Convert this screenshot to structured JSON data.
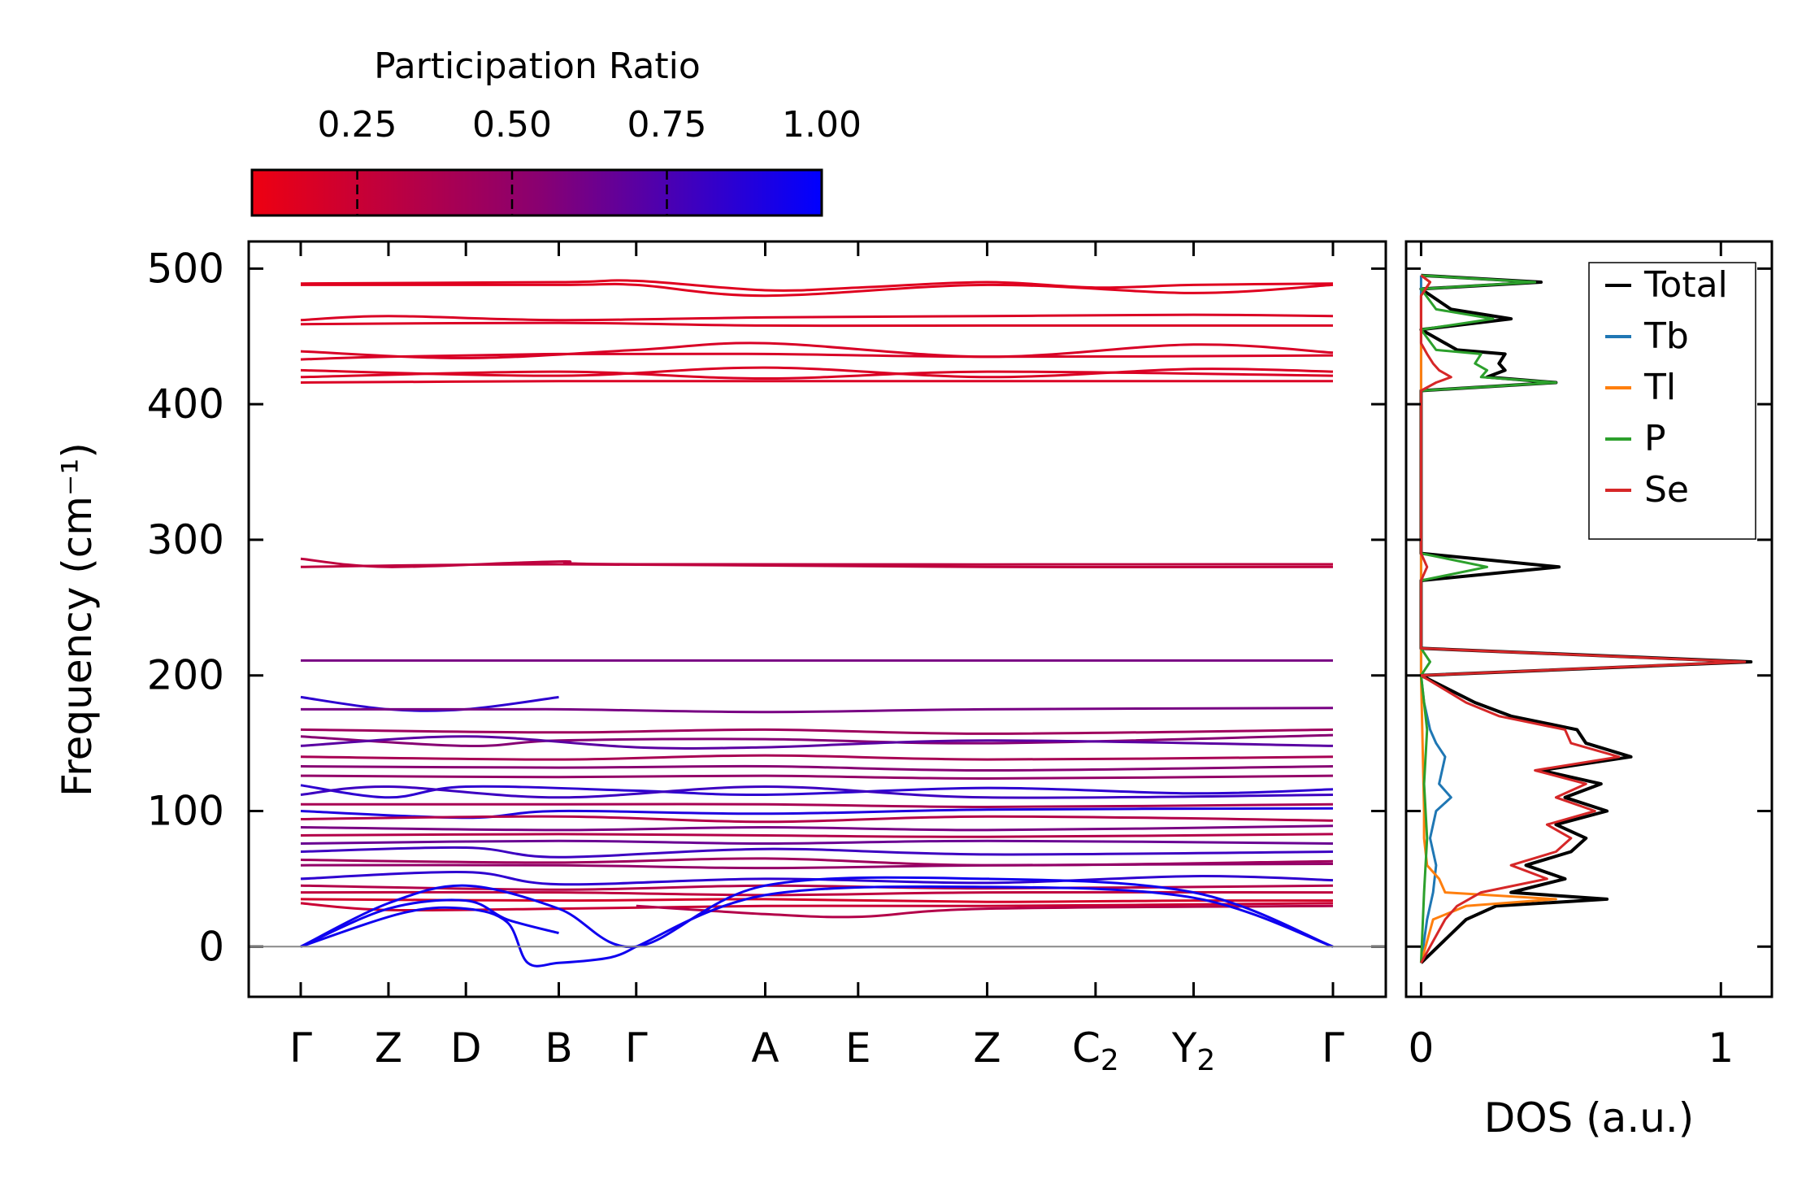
{
  "chart_data": [
    {
      "type": "line",
      "title": "",
      "xlabel": "",
      "ylabel": "Frequency (cm⁻¹)",
      "ylim": [
        -37,
        520
      ],
      "yticks": [
        0,
        100,
        200,
        300,
        400,
        500
      ],
      "grid": false,
      "path_labels": [
        "Γ",
        "Z",
        "D",
        "B",
        "Γ",
        "A",
        "E",
        "Z",
        "C₂",
        "Y₂",
        "Γ"
      ],
      "path_positions": [
        0.0,
        0.085,
        0.16,
        0.25,
        0.325,
        0.45,
        0.54,
        0.665,
        0.77,
        0.865,
        1.0
      ],
      "zero_line": 0,
      "series": [
        {
          "name": "band-490",
          "ratio": 0.15,
          "x": [
            0,
            0.25,
            0.325,
            0.45,
            0.54,
            0.665,
            0.77,
            0.865,
            1.0
          ],
          "values": [
            489,
            490,
            491,
            484,
            486,
            490,
            486,
            488,
            489
          ]
        },
        {
          "name": "band-485",
          "ratio": 0.15,
          "x": [
            0,
            0.25,
            0.325,
            0.45,
            0.665,
            0.865,
            1.0
          ],
          "values": [
            488,
            488,
            488,
            480,
            488,
            482,
            488
          ]
        },
        {
          "name": "band-465",
          "ratio": 0.17,
          "x": [
            0,
            0.085,
            0.25,
            0.45,
            0.665,
            0.865,
            1.0
          ],
          "values": [
            462,
            465,
            462,
            464,
            465,
            466,
            465
          ]
        },
        {
          "name": "band-460",
          "ratio": 0.17,
          "x": [
            0,
            0.25,
            0.45,
            0.665,
            1.0
          ],
          "values": [
            459,
            460,
            458,
            458,
            458
          ]
        },
        {
          "name": "band-440",
          "ratio": 0.18,
          "x": [
            0,
            0.16,
            0.325,
            0.45,
            0.665,
            0.865,
            1.0
          ],
          "values": [
            439,
            434,
            440,
            445,
            435,
            444,
            438
          ]
        },
        {
          "name": "band-435",
          "ratio": 0.18,
          "x": [
            0,
            0.085,
            0.25,
            0.45,
            0.665,
            1.0
          ],
          "values": [
            433,
            435,
            437,
            437,
            435,
            436
          ]
        },
        {
          "name": "band-425",
          "ratio": 0.17,
          "x": [
            0,
            0.25,
            0.45,
            0.665,
            0.865,
            1.0
          ],
          "values": [
            425,
            421,
            427,
            420,
            426,
            424
          ]
        },
        {
          "name": "band-420",
          "ratio": 0.17,
          "x": [
            0,
            0.25,
            0.45,
            0.665,
            1.0
          ],
          "values": [
            420,
            424,
            419,
            424,
            421
          ]
        },
        {
          "name": "band-416",
          "ratio": 0.17,
          "x": [
            0,
            0.25,
            0.45,
            0.665,
            1.0
          ],
          "values": [
            416,
            417,
            417,
            417,
            417
          ]
        },
        {
          "name": "band-286",
          "ratio": 0.3,
          "x": [
            0,
            0.085,
            0.25,
            0.325,
            1.0
          ],
          "values": [
            286,
            280,
            284,
            282,
            282
          ]
        },
        {
          "name": "band-280",
          "ratio": 0.3,
          "x": [
            0,
            0.25,
            0.665,
            1.0
          ],
          "values": [
            280,
            282,
            280,
            280
          ]
        },
        {
          "name": "band-211",
          "ratio": 0.6,
          "x": [
            0,
            0.25,
            0.665,
            1.0
          ],
          "values": [
            211,
            211,
            211,
            211
          ]
        },
        {
          "name": "band-183",
          "ratio": 0.85,
          "x": [
            0,
            0.085,
            0.16,
            0.25
          ],
          "values": [
            184,
            175,
            175,
            184
          ]
        },
        {
          "name": "band-175",
          "ratio": 0.6,
          "x": [
            0,
            0.085,
            0.25,
            0.45,
            0.665,
            1.0
          ],
          "values": [
            175,
            175,
            175,
            173,
            175,
            176
          ]
        },
        {
          "name": "band-160",
          "ratio": 0.45,
          "x": [
            0,
            0.25,
            0.45,
            0.665,
            1.0
          ],
          "values": [
            160,
            158,
            160,
            157,
            160
          ]
        },
        {
          "name": "band-155",
          "ratio": 0.55,
          "x": [
            0,
            0.16,
            0.25,
            0.45,
            0.665,
            1.0
          ],
          "values": [
            155,
            148,
            152,
            153,
            150,
            156
          ]
        },
        {
          "name": "band-148",
          "ratio": 0.7,
          "x": [
            0,
            0.16,
            0.325,
            0.45,
            0.665,
            1.0
          ],
          "values": [
            148,
            155,
            147,
            147,
            152,
            148
          ]
        },
        {
          "name": "band-140",
          "ratio": 0.4,
          "x": [
            0,
            0.25,
            0.45,
            0.665,
            1.0
          ],
          "values": [
            140,
            138,
            141,
            138,
            140
          ]
        },
        {
          "name": "band-133",
          "ratio": 0.55,
          "x": [
            0,
            0.25,
            0.45,
            0.665,
            1.0
          ],
          "values": [
            133,
            132,
            133,
            130,
            133
          ]
        },
        {
          "name": "band-126",
          "ratio": 0.5,
          "x": [
            0,
            0.25,
            0.45,
            0.665,
            1.0
          ],
          "values": [
            126,
            125,
            126,
            124,
            126
          ]
        },
        {
          "name": "band-118",
          "ratio": 0.85,
          "x": [
            0,
            0.085,
            0.16,
            0.325,
            0.45,
            0.665,
            0.865,
            1.0
          ],
          "values": [
            119,
            110,
            118,
            115,
            112,
            117,
            113,
            116
          ]
        },
        {
          "name": "band-112",
          "ratio": 0.8,
          "x": [
            0,
            0.085,
            0.25,
            0.45,
            0.665,
            1.0
          ],
          "values": [
            112,
            118,
            110,
            118,
            110,
            112
          ]
        },
        {
          "name": "band-105",
          "ratio": 0.4,
          "x": [
            0,
            0.25,
            0.45,
            0.665,
            1.0
          ],
          "values": [
            105,
            105,
            105,
            103,
            105
          ]
        },
        {
          "name": "band-99",
          "ratio": 0.9,
          "x": [
            0,
            0.16,
            0.25,
            0.45,
            0.665,
            1.0
          ],
          "values": [
            100,
            95,
            100,
            98,
            101,
            102
          ]
        },
        {
          "name": "band-94",
          "ratio": 0.35,
          "x": [
            0,
            0.25,
            0.45,
            0.665,
            1.0
          ],
          "values": [
            94,
            96,
            92,
            96,
            93
          ]
        },
        {
          "name": "band-88",
          "ratio": 0.6,
          "x": [
            0,
            0.25,
            0.45,
            0.665,
            1.0
          ],
          "values": [
            88,
            86,
            88,
            86,
            89
          ]
        },
        {
          "name": "band-82",
          "ratio": 0.35,
          "x": [
            0,
            0.25,
            0.45,
            0.665,
            1.0
          ],
          "values": [
            82,
            83,
            82,
            81,
            83
          ]
        },
        {
          "name": "band-76",
          "ratio": 0.65,
          "x": [
            0,
            0.25,
            0.45,
            0.665,
            1.0
          ],
          "values": [
            76,
            78,
            76,
            78,
            76
          ]
        },
        {
          "name": "band-70",
          "ratio": 0.8,
          "x": [
            0,
            0.16,
            0.25,
            0.45,
            0.665,
            1.0
          ],
          "values": [
            70,
            73,
            66,
            72,
            68,
            70
          ]
        },
        {
          "name": "band-65",
          "ratio": 0.45,
          "x": [
            0,
            0.25,
            0.45,
            0.665,
            1.0
          ],
          "values": [
            64,
            62,
            65,
            60,
            63
          ]
        },
        {
          "name": "band-60",
          "ratio": 0.5,
          "x": [
            0,
            0.25,
            0.45,
            0.665,
            1.0
          ],
          "values": [
            60,
            60,
            58,
            60,
            61
          ]
        },
        {
          "name": "band-52",
          "ratio": 0.85,
          "x": [
            0,
            0.16,
            0.25,
            0.45,
            0.665,
            0.865,
            1.0
          ],
          "values": [
            50,
            55,
            46,
            50,
            47,
            52,
            49
          ]
        },
        {
          "name": "band-45",
          "ratio": 0.35,
          "x": [
            0,
            0.25,
            0.45,
            0.665,
            1.0
          ],
          "values": [
            45,
            42,
            45,
            43,
            45
          ]
        },
        {
          "name": "band-40",
          "ratio": 0.3,
          "x": [
            0,
            0.25,
            0.45,
            0.665,
            1.0
          ],
          "values": [
            40,
            40,
            38,
            40,
            40
          ]
        },
        {
          "name": "band-34",
          "ratio": 0.2,
          "x": [
            0,
            0.25,
            0.45,
            0.665,
            0.865,
            1.0
          ],
          "values": [
            35,
            34,
            35,
            33,
            34,
            34
          ]
        },
        {
          "name": "band-30",
          "ratio": 0.25,
          "x": [
            0,
            0.085,
            0.25,
            0.45,
            0.665,
            1.0
          ],
          "values": [
            32,
            27,
            28,
            30,
            30,
            32
          ]
        },
        {
          "name": "band-22",
          "ratio": 0.35,
          "x": [
            0.325,
            0.45,
            0.54,
            0.665,
            1.0
          ],
          "values": [
            30,
            24,
            22,
            28,
            30
          ]
        },
        {
          "name": "band-acoustic-1",
          "ratio": 0.95,
          "x": [
            0,
            0.085,
            0.16,
            0.25,
            0.325,
            0.45,
            0.665,
            0.865,
            1.0
          ],
          "values": [
            0,
            32,
            45,
            28,
            0,
            45,
            50,
            40,
            0
          ]
        },
        {
          "name": "band-acoustic-2",
          "ratio": 0.95,
          "x": [
            0,
            0.085,
            0.16,
            0.2,
            0.25
          ],
          "values": [
            0,
            28,
            34,
            20,
            10
          ]
        },
        {
          "name": "band-acoustic-3",
          "ratio": 0.95,
          "x": [
            0,
            0.1,
            0.16,
            0.2,
            0.22,
            0.25,
            0.3,
            0.325
          ],
          "values": [
            0,
            25,
            28,
            18,
            -12,
            -12,
            -8,
            0
          ]
        },
        {
          "name": "band-acoustic-4",
          "ratio": 0.95,
          "x": [
            0.325,
            0.45,
            0.665,
            0.865,
            1.0
          ],
          "values": [
            0,
            38,
            44,
            36,
            0
          ]
        }
      ]
    },
    {
      "type": "line",
      "xlabel": "DOS (a.u.)",
      "xlim": [
        -0.05,
        1.17
      ],
      "ylim": [
        -37,
        520
      ],
      "xticks": [
        0,
        1
      ],
      "xtick_labels": [
        "0",
        "1"
      ],
      "legend_position": "top-right",
      "series": [
        {
          "name": "Total",
          "color": "#000000",
          "y": [
            -12,
            20,
            30,
            35,
            40,
            50,
            60,
            70,
            80,
            90,
            100,
            110,
            120,
            130,
            140,
            150,
            160,
            170,
            180,
            200,
            210,
            220,
            270,
            280,
            290,
            410,
            416,
            420,
            425,
            430,
            437,
            440,
            455,
            463,
            470,
            485,
            490,
            495
          ],
          "values": [
            0,
            0.15,
            0.25,
            0.62,
            0.3,
            0.48,
            0.35,
            0.5,
            0.55,
            0.45,
            0.62,
            0.48,
            0.6,
            0.4,
            0.7,
            0.55,
            0.52,
            0.3,
            0.18,
            0.0,
            1.1,
            0.0,
            0.0,
            0.46,
            0.0,
            0.0,
            0.45,
            0.22,
            0.28,
            0.26,
            0.28,
            0.12,
            0.0,
            0.3,
            0.1,
            0.0,
            0.4,
            0.0
          ]
        },
        {
          "name": "Tb",
          "color": "#1f77b4",
          "y": [
            -12,
            20,
            40,
            60,
            80,
            100,
            110,
            120,
            140,
            150,
            160,
            180,
            200,
            495
          ],
          "values": [
            0,
            0.02,
            0.04,
            0.05,
            0.03,
            0.05,
            0.1,
            0.06,
            0.08,
            0.05,
            0.03,
            0.01,
            0.0,
            0.0
          ]
        },
        {
          "name": "Tl",
          "color": "#ff7f0e",
          "y": [
            -12,
            20,
            30,
            35,
            40,
            50,
            60,
            80,
            100,
            200,
            480,
            490,
            495
          ],
          "values": [
            0,
            0.04,
            0.15,
            0.45,
            0.08,
            0.06,
            0.02,
            0.01,
            0.01,
            0.0,
            0.0,
            0.03,
            0.0
          ]
        },
        {
          "name": "P",
          "color": "#2ca02c",
          "y": [
            -12,
            40,
            80,
            120,
            160,
            200,
            210,
            220,
            270,
            280,
            290,
            410,
            416,
            420,
            425,
            430,
            437,
            440,
            455,
            463,
            470,
            485,
            490,
            495
          ],
          "values": [
            0,
            0.01,
            0.02,
            0.01,
            0.02,
            0.0,
            0.03,
            0.0,
            0.0,
            0.22,
            0.0,
            0.0,
            0.45,
            0.2,
            0.22,
            0.18,
            0.2,
            0.05,
            0.0,
            0.24,
            0.05,
            0.0,
            0.38,
            0.0
          ]
        },
        {
          "name": "Se",
          "color": "#d62728",
          "y": [
            -12,
            20,
            30,
            40,
            50,
            60,
            70,
            80,
            90,
            100,
            110,
            120,
            130,
            140,
            150,
            160,
            170,
            180,
            200,
            210,
            220,
            270,
            280,
            290,
            410,
            416,
            420,
            425,
            430,
            437,
            445,
            480,
            490,
            495
          ],
          "values": [
            0,
            0.08,
            0.12,
            0.2,
            0.42,
            0.3,
            0.45,
            0.5,
            0.42,
            0.58,
            0.45,
            0.55,
            0.38,
            0.66,
            0.5,
            0.48,
            0.26,
            0.15,
            0.0,
            1.08,
            0.0,
            0.0,
            0.02,
            0.0,
            0.0,
            0.05,
            0.1,
            0.06,
            0.04,
            0.02,
            0.0,
            0.0,
            0.03,
            0.0
          ]
        }
      ]
    }
  ],
  "colorbar": {
    "label": "Participation Ratio",
    "ticks": [
      0.25,
      0.5,
      0.75,
      1.0
    ],
    "tick_labels": [
      "0.25",
      "0.50",
      "0.75",
      "1.00"
    ],
    "range": [
      0.08,
      1.0
    ],
    "color_low": "#ee0011",
    "color_mid": "#8a0070",
    "color_high": "#0000ff"
  }
}
